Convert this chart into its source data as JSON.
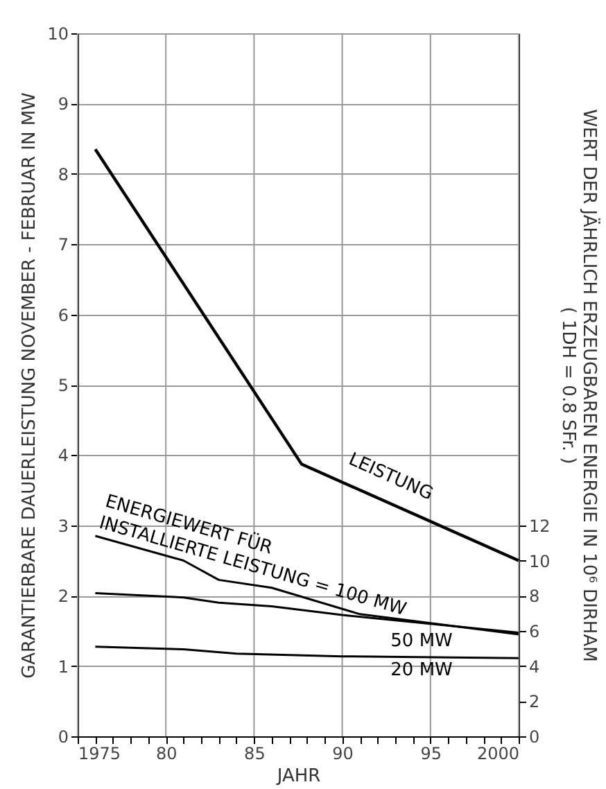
{
  "chart_data": {
    "type": "line",
    "xlabel": "JAHR",
    "ylabel": "GARANTIERBARE DAUERLEISTUNG NOVEMBER - FEBRUAR IN MW",
    "y2label": "WERT DER JÄHRLICH ERZEUGBAREN ENERGIE IN 10⁶ DIRHAM\n( 1DH = 0.8 SFr. )",
    "xlim": [
      1975,
      2000
    ],
    "xticks": [
      1975,
      {
        "value": 1976,
        "label": null
      },
      {
        "value": 1977,
        "label": null
      },
      {
        "value": 1978,
        "label": null
      },
      {
        "value": 1979,
        "label": null
      },
      {
        "value": 1980,
        "label": "80"
      },
      {
        "value": 1981,
        "label": null
      },
      {
        "value": 1982,
        "label": null
      },
      {
        "value": 1983,
        "label": null
      },
      {
        "value": 1984,
        "label": null
      },
      {
        "value": 1985,
        "label": "85"
      },
      {
        "value": 1986,
        "label": null
      },
      {
        "value": 1987,
        "label": null
      },
      {
        "value": 1988,
        "label": null
      },
      {
        "value": 1989,
        "label": null
      },
      {
        "value": 1990,
        "label": "90"
      },
      {
        "value": 1991,
        "label": null
      },
      {
        "value": 1992,
        "label": null
      },
      {
        "value": 1993,
        "label": null
      },
      {
        "value": 1994,
        "label": null
      },
      {
        "value": 1995,
        "label": "95"
      },
      {
        "value": 1996,
        "label": null
      },
      {
        "value": 1997,
        "label": null
      },
      {
        "value": 1998,
        "label": null
      },
      {
        "value": 1999,
        "label": null
      },
      2000
    ],
    "ylim": [
      0,
      10
    ],
    "yticks": [
      0,
      1,
      2,
      3,
      4,
      5,
      6,
      7,
      8,
      9,
      10
    ],
    "y2lim": [
      0,
      40
    ],
    "y2ticks": [
      0,
      2,
      4,
      6,
      8,
      10,
      12
    ],
    "grid": true,
    "legend": false,
    "marker": "none",
    "line_style": "solid",
    "series": [
      {
        "name": "LEISTUNG",
        "color": "#000000",
        "x": [
          1976,
          1987.7,
          2000
        ],
        "values": [
          8.35,
          3.87,
          2.5
        ]
      },
      {
        "name": "ENERGIEWERT FÜR INSTALLIERTE LEISTUNG = 100 MW",
        "color": "#000000",
        "axis": "y2",
        "x": [
          1976,
          1981,
          1983,
          1986,
          1991,
          2000
        ],
        "values": [
          11.4,
          10,
          8.9,
          8.45,
          6.95,
          5.8
        ]
      },
      {
        "name": "50 MW",
        "color": "#000000",
        "axis": "y2",
        "x": [
          1976,
          1981,
          1983,
          1986,
          1990,
          2000
        ],
        "values": [
          8.15,
          7.9,
          7.6,
          7.4,
          6.9,
          5.9
        ]
      },
      {
        "name": "20 MW",
        "color": "#000000",
        "axis": "y2",
        "x": [
          1976,
          1981,
          1984,
          1990,
          2000
        ],
        "values": [
          5.1,
          4.95,
          4.7,
          4.55,
          4.45
        ]
      }
    ]
  }
}
